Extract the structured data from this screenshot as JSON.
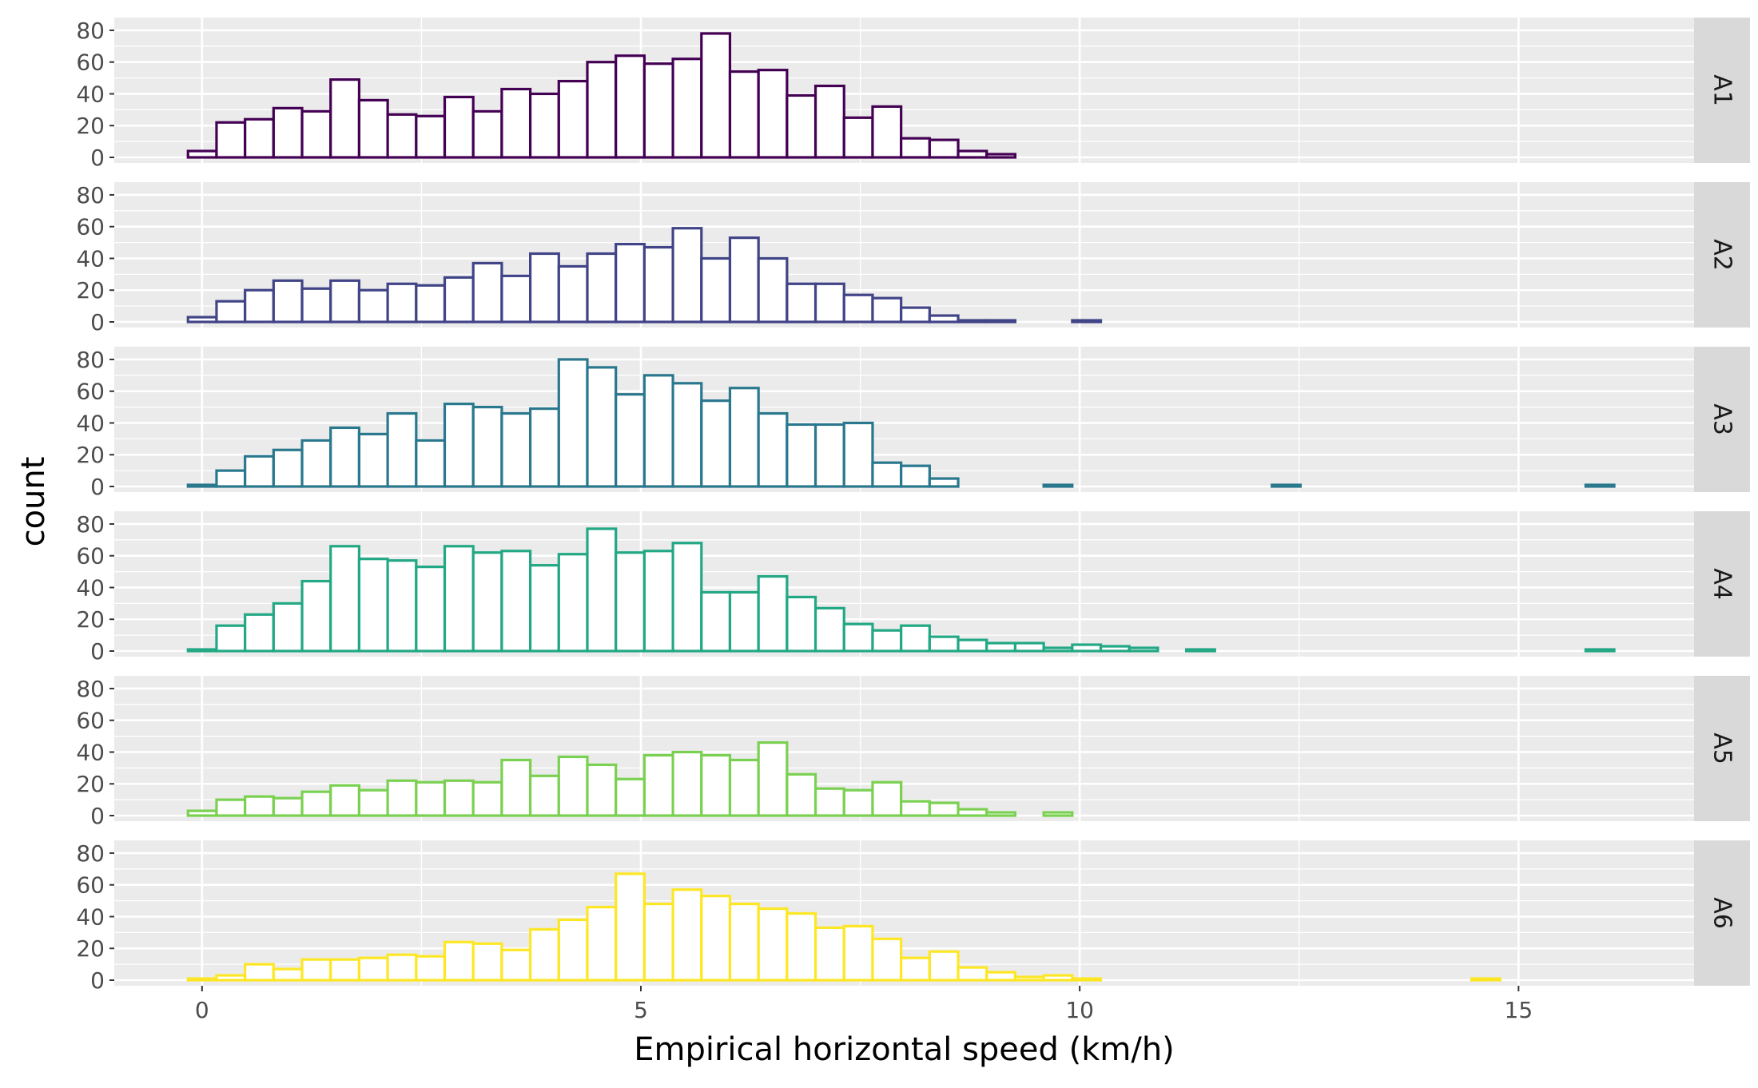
{
  "chart_data": {
    "type": "bar",
    "subtype": "faceted-histogram",
    "xlabel": "Empirical horizontal speed (km/h)",
    "ylabel": "count",
    "xlim": [
      -1,
      17
    ],
    "ylim": [
      0,
      84
    ],
    "x_ticks": [
      0,
      5,
      10,
      15
    ],
    "y_ticks": [
      0,
      20,
      40,
      60,
      80
    ],
    "grid": true,
    "bin_start": -0.16,
    "bin_width": 0.325,
    "legend": "none",
    "background_color": "#ebebeb",
    "strip_color": "#d9d9d9",
    "series": [
      {
        "name": "A1",
        "color": "#440154",
        "values": [
          4,
          22,
          24,
          31,
          29,
          49,
          36,
          27,
          26,
          38,
          29,
          43,
          40,
          48,
          60,
          64,
          59,
          62,
          78,
          54,
          55,
          39,
          45,
          25,
          32,
          12,
          11,
          4,
          2,
          0,
          0,
          0,
          0,
          0,
          0,
          0,
          0,
          0,
          0,
          0,
          0,
          0,
          0,
          0,
          0,
          0,
          0,
          0,
          0,
          0
        ]
      },
      {
        "name": "A2",
        "color": "#414487",
        "values": [
          3,
          13,
          20,
          26,
          21,
          26,
          20,
          24,
          23,
          28,
          37,
          29,
          43,
          35,
          43,
          49,
          47,
          59,
          40,
          53,
          40,
          24,
          24,
          17,
          15,
          9,
          4,
          1,
          1,
          0,
          0,
          1,
          0,
          0,
          0,
          0,
          0,
          0,
          0,
          0,
          0,
          0,
          0,
          0,
          0,
          0,
          0,
          0,
          0,
          0
        ]
      },
      {
        "name": "A3",
        "color": "#2A788E",
        "values": [
          1,
          10,
          19,
          23,
          29,
          37,
          33,
          46,
          29,
          52,
          50,
          46,
          49,
          80,
          75,
          58,
          70,
          65,
          54,
          62,
          46,
          39,
          39,
          40,
          15,
          13,
          5,
          0,
          0,
          0,
          1,
          0,
          0,
          0,
          0,
          0,
          0,
          0,
          1,
          0,
          0,
          0,
          0,
          0,
          0,
          0,
          0,
          0,
          0,
          1
        ]
      },
      {
        "name": "A4",
        "color": "#22A884",
        "values": [
          1,
          16,
          23,
          30,
          44,
          66,
          58,
          57,
          53,
          66,
          62,
          63,
          54,
          61,
          77,
          62,
          63,
          68,
          37,
          37,
          47,
          34,
          27,
          17,
          13,
          16,
          9,
          7,
          5,
          5,
          2,
          4,
          3,
          2,
          0,
          1,
          0,
          0,
          0,
          0,
          0,
          0,
          0,
          0,
          0,
          0,
          0,
          0,
          0,
          1
        ]
      },
      {
        "name": "A5",
        "color": "#7AD151",
        "values": [
          3,
          10,
          12,
          11,
          15,
          19,
          16,
          22,
          21,
          22,
          21,
          35,
          25,
          37,
          32,
          23,
          38,
          40,
          38,
          35,
          46,
          26,
          17,
          16,
          21,
          9,
          8,
          4,
          2,
          0,
          2,
          0,
          0,
          0,
          0,
          0,
          0,
          0,
          0,
          0,
          0,
          0,
          0,
          0,
          0,
          0,
          0,
          0,
          0,
          0
        ]
      },
      {
        "name": "A6",
        "color": "#FDE725",
        "values": [
          1,
          3,
          10,
          7,
          13,
          13,
          14,
          16,
          15,
          24,
          23,
          19,
          32,
          38,
          46,
          67,
          48,
          57,
          53,
          48,
          45,
          42,
          33,
          34,
          26,
          14,
          18,
          8,
          5,
          2,
          3,
          1,
          0,
          0,
          0,
          0,
          0,
          0,
          0,
          0,
          0,
          0,
          0,
          0,
          0,
          1,
          0,
          0,
          0,
          0
        ]
      }
    ]
  }
}
